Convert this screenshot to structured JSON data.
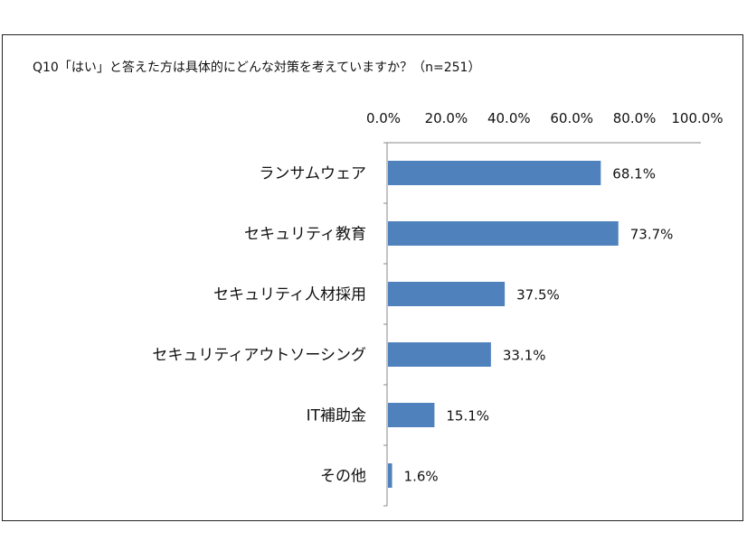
{
  "chart_data": {
    "type": "bar",
    "orientation": "horizontal",
    "title": "Q10「はい」と答えた方は具体的にどんな対策を考えていますか？（n=251）",
    "categories": [
      "ランサムウェア",
      "セキュリティ教育",
      "セキュリティ人材採用",
      "セキュリティアウトソーシング",
      "IT補助金",
      "その他"
    ],
    "values": [
      68.1,
      73.7,
      37.5,
      33.1,
      15.1,
      1.6
    ],
    "data_labels": [
      "68.1%",
      "73.7%",
      "37.5%",
      "33.1%",
      "15.1%",
      "1.6%"
    ],
    "xlim": [
      0,
      100
    ],
    "x_ticks": [
      "0.0%",
      "20.0%",
      "40.0%",
      "60.0%",
      "80.0%",
      "100.0%"
    ],
    "x_axis_position": "top",
    "grid": false,
    "legend": "none",
    "bar_color": "#4f81bd"
  }
}
